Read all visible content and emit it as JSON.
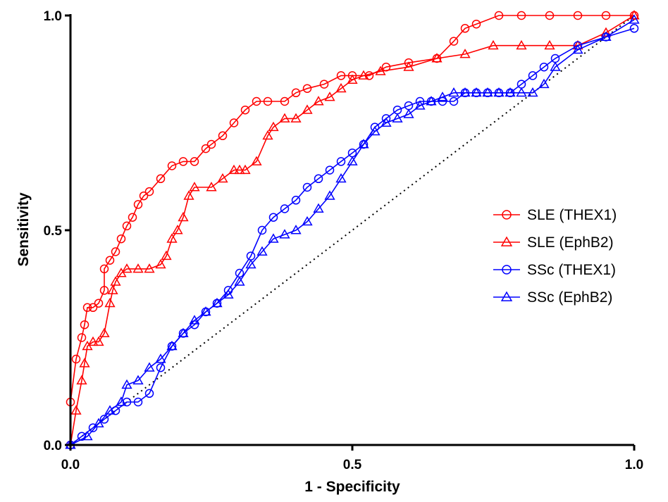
{
  "chart_data": {
    "type": "line",
    "xlabel": "1 - Specificity",
    "ylabel": "Sensitivity",
    "xlim": [
      0,
      1
    ],
    "ylim": [
      0,
      1
    ],
    "xticks": [
      "0.0",
      "0.5",
      "1.0"
    ],
    "yticks": [
      "0.0",
      "0.5",
      "1.0"
    ],
    "grid": false,
    "legend_position": "right",
    "reference_line": {
      "style": "dotted",
      "color": "#000000",
      "x": [
        0,
        1
      ],
      "y": [
        0,
        1
      ]
    },
    "series": [
      {
        "name": "SLE (THEX1)",
        "color": "#ff0000",
        "marker": "circle",
        "x": [
          0,
          0,
          0.01,
          0.02,
          0.025,
          0.03,
          0.04,
          0.05,
          0.06,
          0.06,
          0.07,
          0.08,
          0.09,
          0.1,
          0.11,
          0.12,
          0.13,
          0.14,
          0.16,
          0.18,
          0.2,
          0.22,
          0.24,
          0.25,
          0.27,
          0.29,
          0.31,
          0.33,
          0.35,
          0.38,
          0.4,
          0.42,
          0.45,
          0.48,
          0.5,
          0.53,
          0.56,
          0.6,
          0.65,
          0.68,
          0.7,
          0.72,
          0.76,
          0.8,
          0.85,
          0.9,
          0.95,
          1.0
        ],
        "y": [
          0,
          0.1,
          0.2,
          0.25,
          0.28,
          0.32,
          0.32,
          0.33,
          0.36,
          0.41,
          0.43,
          0.45,
          0.48,
          0.51,
          0.53,
          0.56,
          0.58,
          0.59,
          0.62,
          0.65,
          0.66,
          0.66,
          0.69,
          0.7,
          0.72,
          0.75,
          0.78,
          0.8,
          0.8,
          0.8,
          0.82,
          0.83,
          0.84,
          0.86,
          0.86,
          0.86,
          0.88,
          0.89,
          0.9,
          0.94,
          0.97,
          0.98,
          1.0,
          1.0,
          1.0,
          1.0,
          1.0,
          1.0
        ]
      },
      {
        "name": "SLE (EphB2)",
        "color": "#ff0000",
        "marker": "triangle",
        "x": [
          0,
          0.01,
          0.02,
          0.025,
          0.03,
          0.04,
          0.05,
          0.06,
          0.07,
          0.075,
          0.08,
          0.09,
          0.1,
          0.12,
          0.14,
          0.16,
          0.17,
          0.18,
          0.19,
          0.2,
          0.21,
          0.22,
          0.25,
          0.27,
          0.29,
          0.3,
          0.31,
          0.33,
          0.35,
          0.36,
          0.38,
          0.4,
          0.42,
          0.44,
          0.46,
          0.48,
          0.5,
          0.52,
          0.55,
          0.6,
          0.65,
          0.7,
          0.75,
          0.8,
          0.85,
          0.9,
          0.95,
          1.0
        ],
        "y": [
          0,
          0.08,
          0.15,
          0.19,
          0.23,
          0.24,
          0.24,
          0.26,
          0.33,
          0.36,
          0.38,
          0.4,
          0.41,
          0.41,
          0.41,
          0.42,
          0.44,
          0.48,
          0.5,
          0.53,
          0.58,
          0.6,
          0.6,
          0.62,
          0.64,
          0.64,
          0.64,
          0.66,
          0.72,
          0.74,
          0.76,
          0.76,
          0.78,
          0.8,
          0.81,
          0.83,
          0.85,
          0.86,
          0.87,
          0.88,
          0.9,
          0.91,
          0.93,
          0.93,
          0.93,
          0.93,
          0.96,
          1.0
        ]
      },
      {
        "name": "SSc (THEX1)",
        "color": "#0000ff",
        "marker": "circle",
        "x": [
          0,
          0.02,
          0.04,
          0.06,
          0.08,
          0.1,
          0.12,
          0.14,
          0.16,
          0.18,
          0.2,
          0.22,
          0.24,
          0.26,
          0.28,
          0.3,
          0.32,
          0.34,
          0.36,
          0.38,
          0.4,
          0.42,
          0.44,
          0.46,
          0.48,
          0.5,
          0.52,
          0.54,
          0.56,
          0.58,
          0.6,
          0.62,
          0.64,
          0.66,
          0.68,
          0.7,
          0.72,
          0.74,
          0.76,
          0.78,
          0.8,
          0.82,
          0.84,
          0.86,
          0.9,
          0.95,
          1.0
        ],
        "y": [
          0,
          0.02,
          0.04,
          0.06,
          0.08,
          0.1,
          0.1,
          0.12,
          0.18,
          0.23,
          0.26,
          0.28,
          0.31,
          0.33,
          0.36,
          0.4,
          0.44,
          0.5,
          0.53,
          0.55,
          0.57,
          0.6,
          0.62,
          0.64,
          0.66,
          0.68,
          0.7,
          0.74,
          0.76,
          0.78,
          0.79,
          0.8,
          0.8,
          0.8,
          0.8,
          0.82,
          0.82,
          0.82,
          0.82,
          0.82,
          0.84,
          0.86,
          0.88,
          0.9,
          0.93,
          0.95,
          0.97
        ]
      },
      {
        "name": "SSc (EphB2)",
        "color": "#0000ff",
        "marker": "triangle",
        "x": [
          0,
          0.03,
          0.05,
          0.07,
          0.09,
          0.1,
          0.12,
          0.14,
          0.16,
          0.18,
          0.2,
          0.22,
          0.24,
          0.26,
          0.28,
          0.3,
          0.32,
          0.34,
          0.36,
          0.38,
          0.4,
          0.42,
          0.44,
          0.46,
          0.48,
          0.5,
          0.52,
          0.54,
          0.56,
          0.58,
          0.6,
          0.62,
          0.64,
          0.66,
          0.68,
          0.7,
          0.72,
          0.74,
          0.76,
          0.78,
          0.8,
          0.82,
          0.84,
          0.86,
          0.9,
          0.95,
          1.0
        ],
        "y": [
          0,
          0.02,
          0.05,
          0.08,
          0.1,
          0.14,
          0.15,
          0.18,
          0.2,
          0.23,
          0.26,
          0.29,
          0.31,
          0.33,
          0.35,
          0.38,
          0.42,
          0.45,
          0.48,
          0.49,
          0.5,
          0.52,
          0.55,
          0.58,
          0.62,
          0.66,
          0.7,
          0.73,
          0.75,
          0.76,
          0.77,
          0.79,
          0.8,
          0.81,
          0.82,
          0.82,
          0.82,
          0.82,
          0.82,
          0.82,
          0.82,
          0.82,
          0.84,
          0.88,
          0.92,
          0.95,
          0.99
        ]
      }
    ]
  }
}
